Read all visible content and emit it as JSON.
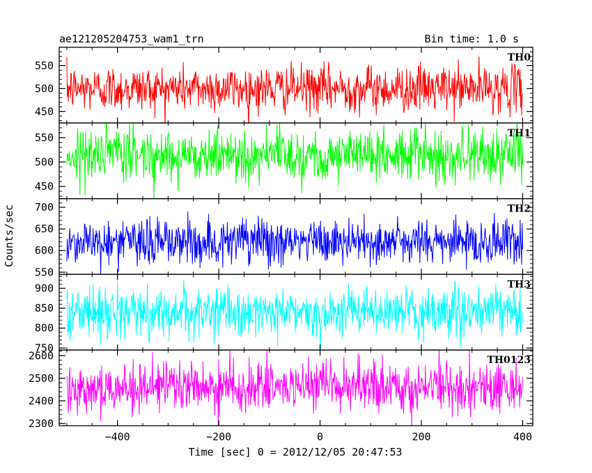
{
  "chart_data": {
    "type": "line",
    "title_left": "ae121205204753_wam1_trn",
    "title_right": "Bin time: 1.0 s",
    "xlabel": "Time [sec] 0 = 2012/12/05 20:47:53",
    "ylabel": "Counts/sec",
    "xlim": [
      -515,
      420
    ],
    "x_ticks": [
      -400,
      -200,
      0,
      200,
      400
    ],
    "x_tick_labels": [
      "−400",
      "−200",
      "0",
      "200",
      "400"
    ],
    "x_data_range": [
      -500,
      400
    ],
    "bin_time": 1.0,
    "panels": [
      {
        "name": "TH0",
        "color": "#ff0000",
        "ylim": [
          425,
          590
        ],
        "yticks": [
          450,
          500,
          550
        ],
        "mean": 500,
        "noise_sd": 25
      },
      {
        "name": "TH1",
        "color": "#00ff00",
        "ylim": [
          425,
          580
        ],
        "yticks": [
          450,
          500,
          550
        ],
        "mean": 515,
        "noise_sd": 27
      },
      {
        "name": "TH2",
        "color": "#0000ff",
        "ylim": [
          545,
          720
        ],
        "yticks": [
          550,
          600,
          650,
          700
        ],
        "mean": 620,
        "noise_sd": 27
      },
      {
        "name": "TH3",
        "color": "#00ffff",
        "ylim": [
          745,
          935
        ],
        "yticks": [
          750,
          800,
          850,
          900
        ],
        "mean": 840,
        "noise_sd": 30
      },
      {
        "name": "TH0123",
        "color": "#ff00ff",
        "ylim": [
          2290,
          2625
        ],
        "yticks": [
          2300,
          2400,
          2500,
          2600
        ],
        "mean": 2460,
        "noise_sd": 55
      }
    ]
  }
}
